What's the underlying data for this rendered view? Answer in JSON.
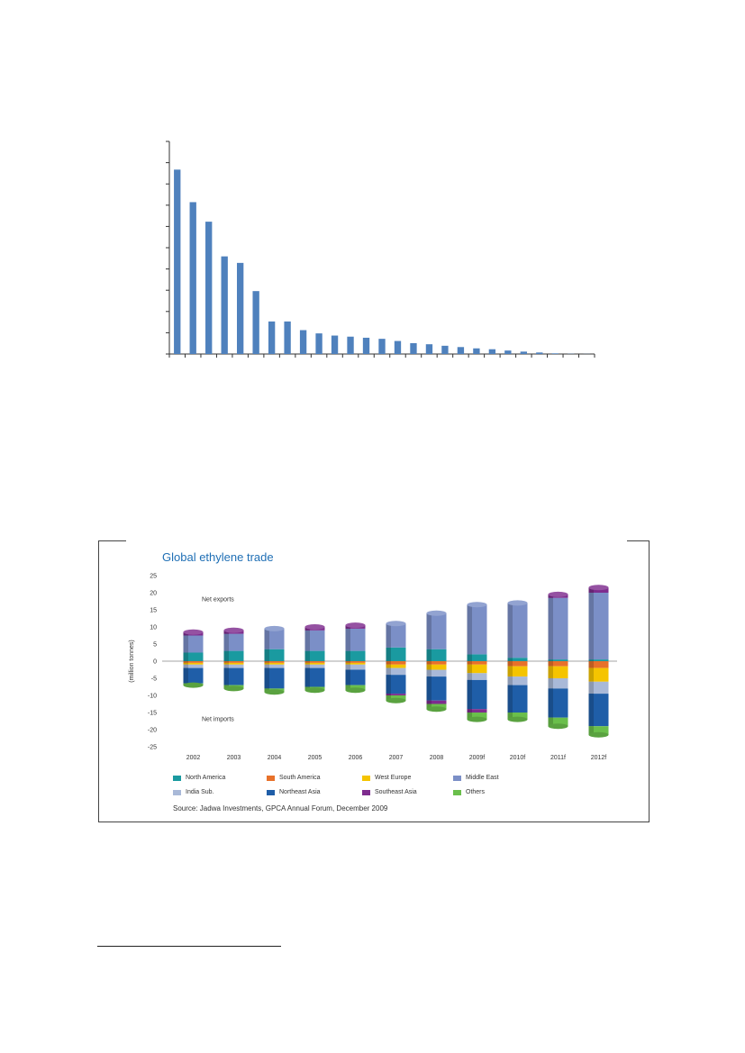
{
  "chart_data": [
    {
      "type": "bar",
      "values": [
        85,
        70,
        61,
        45,
        42,
        29,
        15,
        15,
        11,
        9.5,
        8.5,
        8,
        7.5,
        7,
        6,
        5,
        4.5,
        3.8,
        3.2,
        2.6,
        2.2,
        1.6,
        1.1,
        0.7,
        0.3,
        0.1,
        0.05
      ],
      "ylim": [
        0,
        98
      ],
      "yticks": 10,
      "color": "#4f81bd",
      "grid": false
    },
    {
      "type": "bar",
      "title": "Global ethylene trade",
      "ylabel": "(million tonnes)",
      "ylim": [
        -25,
        25
      ],
      "yticks": [
        25,
        20,
        15,
        10,
        5,
        0,
        -5,
        -10,
        -15,
        -20,
        -25
      ],
      "categories": [
        "2002",
        "2003",
        "2004",
        "2005",
        "2006",
        "2007",
        "2008",
        "2009f",
        "2010f",
        "2011f",
        "2012f"
      ],
      "annotations": [
        "Net exports",
        "Net imports"
      ],
      "series": [
        {
          "name": "North America",
          "color": "#1a9aa0",
          "values": [
            2.5,
            3,
            3.5,
            3,
            3,
            4,
            3.5,
            2,
            1,
            0.5,
            0.5
          ]
        },
        {
          "name": "South America",
          "color": "#e8712a",
          "values": [
            -0.5,
            -0.5,
            -0.5,
            -0.5,
            -0.5,
            -1,
            -1,
            -1,
            -1.5,
            -1.5,
            -2
          ]
        },
        {
          "name": "West Europe",
          "color": "#f5c400",
          "values": [
            -0.5,
            -0.5,
            -0.5,
            -0.5,
            -0.5,
            -1,
            -1.5,
            -2.5,
            -3,
            -3.5,
            -4
          ]
        },
        {
          "name": "Middle East",
          "color": "#7b8fc7",
          "values": [
            5,
            5,
            6,
            6,
            6.5,
            7,
            10.5,
            14.5,
            16,
            18,
            19.5
          ]
        },
        {
          "name": "India Sub.",
          "color": "#a9b9d8",
          "values": [
            -1,
            -1,
            -1,
            -1,
            -1.5,
            -2,
            -2,
            -2,
            -2.5,
            -3,
            -3.5
          ]
        },
        {
          "name": "Northeast Asia",
          "color": "#1f5ea8",
          "values": [
            -4.5,
            -5,
            -6,
            -5.5,
            -4.5,
            -5.5,
            -7,
            -8.5,
            -8,
            -8.5,
            -9.5
          ]
        },
        {
          "name": "Southeast Asia",
          "color": "#7e2c8e",
          "values": [
            1,
            1,
            0,
            1,
            1,
            0,
            0,
            0,
            0,
            1,
            1.5
          ]
        },
        {
          "name": "Others",
          "color": "#6abf4b",
          "values": [
            -0.5,
            -1,
            -1,
            -1,
            -1.5,
            -1.5,
            -1.5,
            -2,
            -2,
            -2.5,
            -2.5
          ]
        }
      ],
      "southeast_asia_imports": [
        0,
        0,
        0,
        0,
        0,
        -0.5,
        -1,
        -1,
        0,
        0,
        0
      ],
      "legend_position": "bottom",
      "source": "Source: Jadwa Investments, GPCA Annual Forum, December 2009"
    }
  ]
}
